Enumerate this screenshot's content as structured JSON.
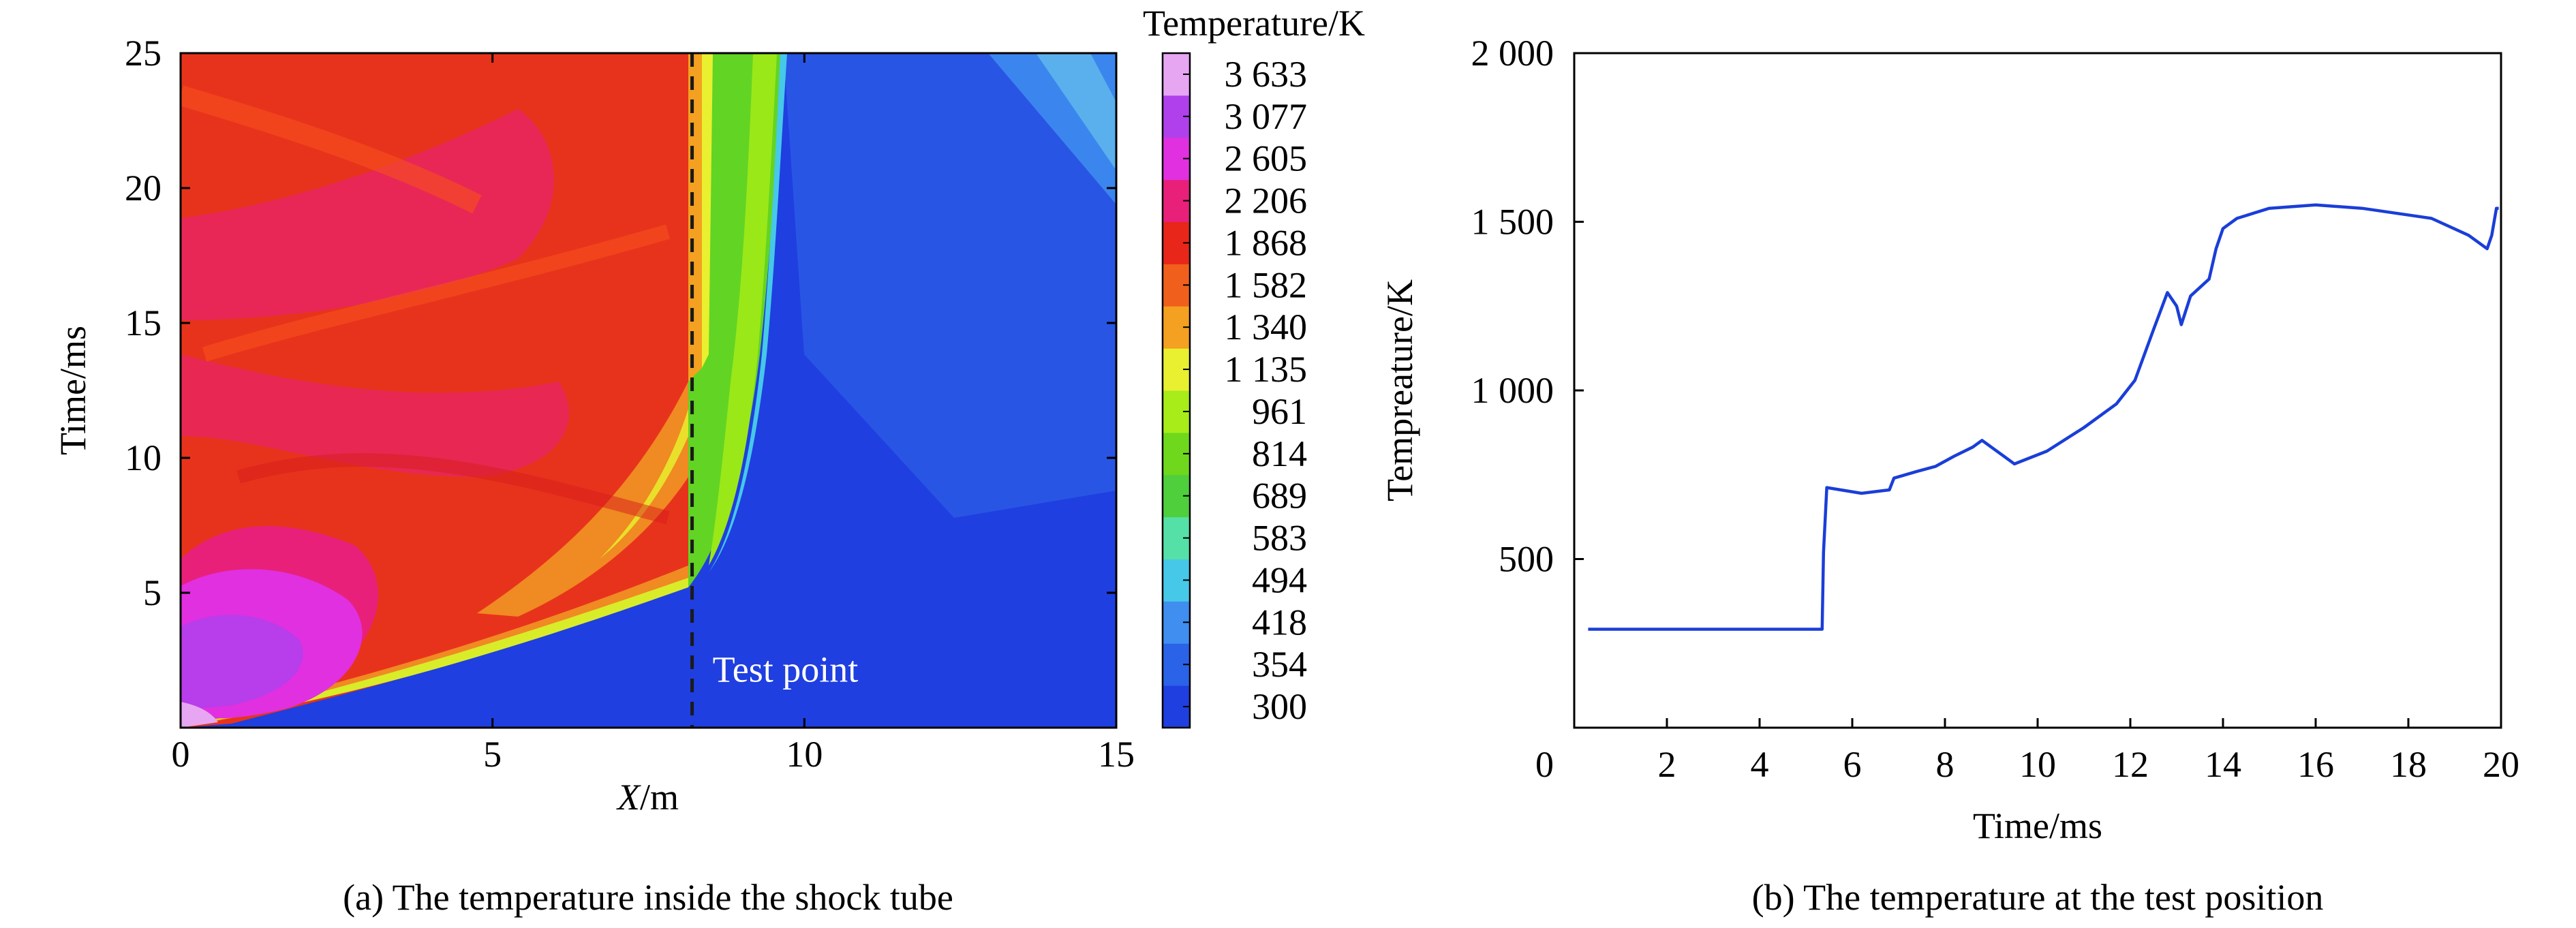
{
  "chart_data": [
    {
      "type": "heatmap",
      "caption": "(a) The temperature inside the shock tube",
      "xlabel_italic": "X",
      "xlabel_unit": "/m",
      "ylabel": "Time/ms",
      "xlim": [
        0,
        15
      ],
      "ylim": [
        0,
        25
      ],
      "x_ticks": [
        0,
        5,
        10,
        15
      ],
      "y_ticks": [
        5,
        10,
        15,
        20,
        25
      ],
      "x_tick_labels": [
        "0",
        "5",
        "10",
        "15"
      ],
      "y_tick_labels": [
        "5",
        "10",
        "15",
        "20",
        "25"
      ],
      "colorbar": {
        "title": "Temperature/K",
        "levels": [
          300,
          354,
          418,
          494,
          583,
          689,
          814,
          961,
          1135,
          1340,
          1582,
          1868,
          2206,
          2605,
          3077,
          3633
        ],
        "labels": [
          "300",
          "354",
          "418",
          "494",
          "583",
          "689",
          "814",
          "961",
          "1 135",
          "1 340",
          "1 582",
          "1 868",
          "2 206",
          "2 605",
          "3 077",
          "3 633"
        ],
        "colors": [
          "#1f3fe0",
          "#2a62e8",
          "#3f8ef0",
          "#46c8e8",
          "#55e0a8",
          "#4fcf3c",
          "#6fd81c",
          "#a8ec1a",
          "#e8f030",
          "#f4a020",
          "#f0601c",
          "#e8261a",
          "#e8207a",
          "#e030e0",
          "#b040ec",
          "#e6a6f2"
        ]
      },
      "annotation": "Test point",
      "test_point_x": 8.2
    },
    {
      "type": "line",
      "caption": "(b) The temperature at the test position",
      "xlabel": "Time/ms",
      "ylabel": "Tempreature/K",
      "xlim": [
        0,
        20
      ],
      "ylim": [
        0,
        2000
      ],
      "x_ticks": [
        0,
        2,
        4,
        6,
        8,
        10,
        12,
        14,
        16,
        18,
        20
      ],
      "y_ticks": [
        500,
        1000,
        1500,
        2000
      ],
      "x_tick_labels": [
        "0",
        "2",
        "4",
        "6",
        "8",
        "10",
        "12",
        "14",
        "16",
        "18",
        "20"
      ],
      "y_tick_labels": [
        "500",
        "1 000",
        "1 500",
        "2 000"
      ],
      "line_color": "#1a3ed8",
      "x": [
        0.3,
        5.35,
        5.38,
        5.45,
        6.2,
        6.8,
        6.9,
        7.4,
        7.8,
        8.2,
        8.6,
        8.8,
        9.2,
        9.5,
        10.2,
        11.0,
        11.7,
        12.1,
        12.5,
        12.8,
        13.0,
        13.1,
        13.3,
        13.7,
        13.85,
        14.0,
        14.3,
        15.0,
        16.0,
        17.0,
        18.5,
        19.3,
        19.7,
        19.8,
        19.9,
        19.95
      ],
      "y": [
        292,
        292,
        520,
        712,
        695,
        705,
        740,
        760,
        775,
        805,
        832,
        852,
        812,
        782,
        820,
        890,
        960,
        1030,
        1180,
        1290,
        1250,
        1195,
        1280,
        1330,
        1420,
        1480,
        1510,
        1540,
        1550,
        1540,
        1510,
        1460,
        1420,
        1460,
        1540,
        1540
      ]
    }
  ]
}
